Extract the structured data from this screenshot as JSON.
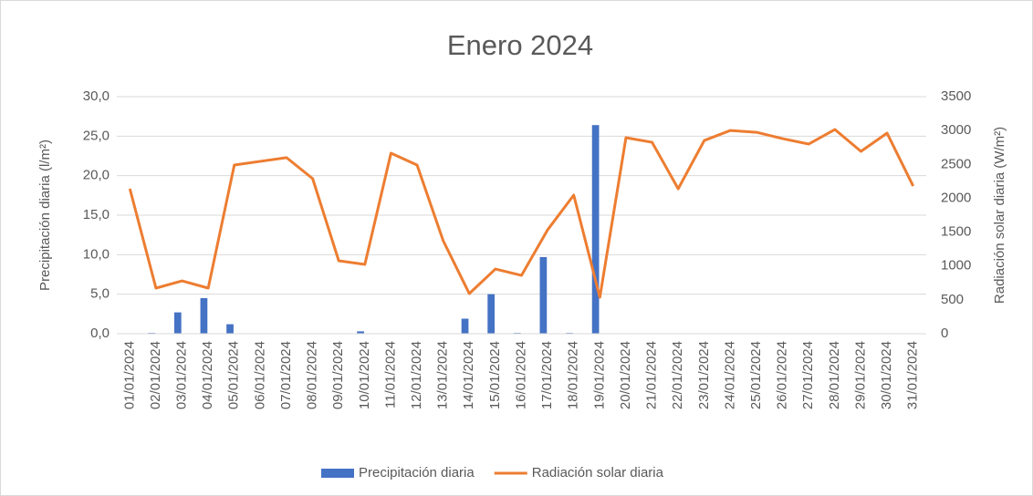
{
  "chart_data": {
    "type": "bar-line",
    "title": "Enero 2024",
    "y_label": "Precipitación diaria (l/m²)",
    "y2_label": "Radiación solar diaria (W/m²)",
    "categories": [
      "01/01/2024",
      "02/01/2024",
      "03/01/2024",
      "04/01/2024",
      "05/01/2024",
      "06/01/2024",
      "07/01/2024",
      "08/01/2024",
      "09/01/2024",
      "10/01/2024",
      "11/01/2024",
      "12/01/2024",
      "13/01/2024",
      "14/01/2024",
      "15/01/2024",
      "16/01/2024",
      "17/01/2024",
      "18/01/2024",
      "19/01/2024",
      "20/01/2024",
      "21/01/2024",
      "22/01/2024",
      "23/01/2024",
      "24/01/2024",
      "25/01/2024",
      "26/01/2024",
      "27/01/2024",
      "28/01/2024",
      "29/01/2024",
      "30/01/2024",
      "31/01/2024"
    ],
    "series": [
      {
        "name": "Precipitación diaria",
        "type": "bar",
        "color": "#4472c4",
        "values": [
          0,
          0.1,
          2.7,
          4.5,
          1.2,
          0,
          0,
          0,
          0,
          0.3,
          0,
          0,
          0,
          1.9,
          5.0,
          0.1,
          9.7,
          0.1,
          26.4,
          0,
          0,
          0,
          0,
          0,
          0,
          0,
          0,
          0,
          0,
          0,
          0
        ]
      },
      {
        "name": "Radiación solar diaria",
        "type": "line",
        "color": "#ed7d31",
        "axis": "y2",
        "values": [
          2140,
          673,
          780,
          673,
          2490,
          2545,
          2600,
          2290,
          1077,
          1023,
          2665,
          2490,
          1373,
          592,
          955,
          861,
          1534,
          2046,
          538,
          2894,
          2826,
          2140,
          2853,
          3001,
          2974,
          2880,
          2800,
          3015,
          2692,
          2961,
          2180
        ]
      }
    ],
    "ylim": [
      0,
      30
    ],
    "yticks": [
      {
        "value": 0,
        "label": "0,0"
      },
      {
        "value": 5,
        "label": "5,0"
      },
      {
        "value": 10,
        "label": "10,0"
      },
      {
        "value": 15,
        "label": "15,0"
      },
      {
        "value": 20,
        "label": "20,0"
      },
      {
        "value": 25,
        "label": "25,0"
      },
      {
        "value": 30,
        "label": "30,0"
      }
    ],
    "y2lim": [
      0,
      3500
    ],
    "y2ticks": [
      0,
      500,
      1000,
      1500,
      2000,
      2500,
      3000,
      3500
    ],
    "grid": true,
    "legend": "bottom"
  }
}
